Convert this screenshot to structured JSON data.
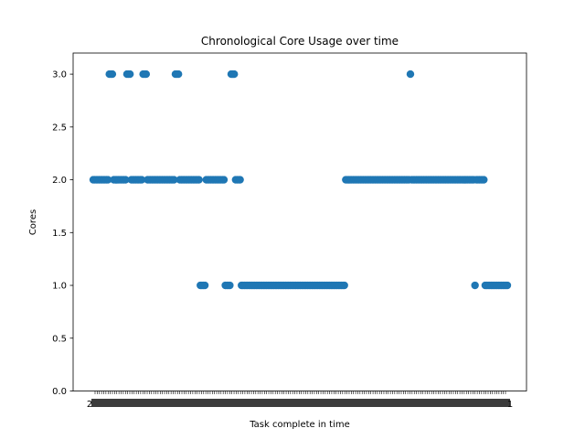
{
  "chart_data": {
    "type": "scatter",
    "title": "Chronological Core Usage over time",
    "xlabel": "Task complete in time",
    "ylabel": "Cores",
    "ylim": [
      0,
      3.2
    ],
    "yticks": [
      "0.0",
      "0.5",
      "1.0",
      "1.5",
      "2.0",
      "2.5",
      "3.0"
    ],
    "ytick_values": [
      0,
      0.5,
      1.0,
      1.5,
      2.0,
      2.5,
      3.0
    ],
    "xlim": [
      -8,
      198
    ],
    "x_tick_count": 190,
    "x_tick_label_fragments": [
      {
        "index": 0,
        "text": "2"
      },
      {
        "index": 189,
        "text": "1"
      }
    ],
    "grid": false,
    "marker_color": "#1f77b4",
    "runs": [
      {
        "start": 0,
        "end": 10,
        "value": 2
      },
      {
        "start": 11,
        "end": 13,
        "value": 3
      },
      {
        "start": 14,
        "end": 22,
        "value": 2
      },
      {
        "start": 23,
        "end": 25,
        "value": 3
      },
      {
        "start": 26,
        "end": 33,
        "value": 2
      },
      {
        "start": 34,
        "end": 36,
        "value": 3
      },
      {
        "start": 37,
        "end": 55,
        "value": 2
      },
      {
        "start": 56,
        "end": 58,
        "value": 3
      },
      {
        "start": 59,
        "end": 72,
        "value": 2
      },
      {
        "start": 73,
        "end": 76,
        "value": 1
      },
      {
        "start": 77,
        "end": 89,
        "value": 2
      },
      {
        "start": 90,
        "end": 93,
        "value": 1
      },
      {
        "start": 94,
        "end": 96,
        "value": 3
      },
      {
        "start": 97,
        "end": 100,
        "value": 2
      },
      {
        "start": 101,
        "end": 171,
        "value": 1
      },
      {
        "start": 172,
        "end": 215,
        "value": 2
      },
      {
        "start": 216,
        "end": 216,
        "value": 3
      },
      {
        "start": 217,
        "end": 259,
        "value": 2
      },
      {
        "start": 260,
        "end": 260,
        "value": 1
      },
      {
        "start": 261,
        "end": 266,
        "value": 2
      },
      {
        "start": 267,
        "end": 282,
        "value": 1
      }
    ]
  }
}
